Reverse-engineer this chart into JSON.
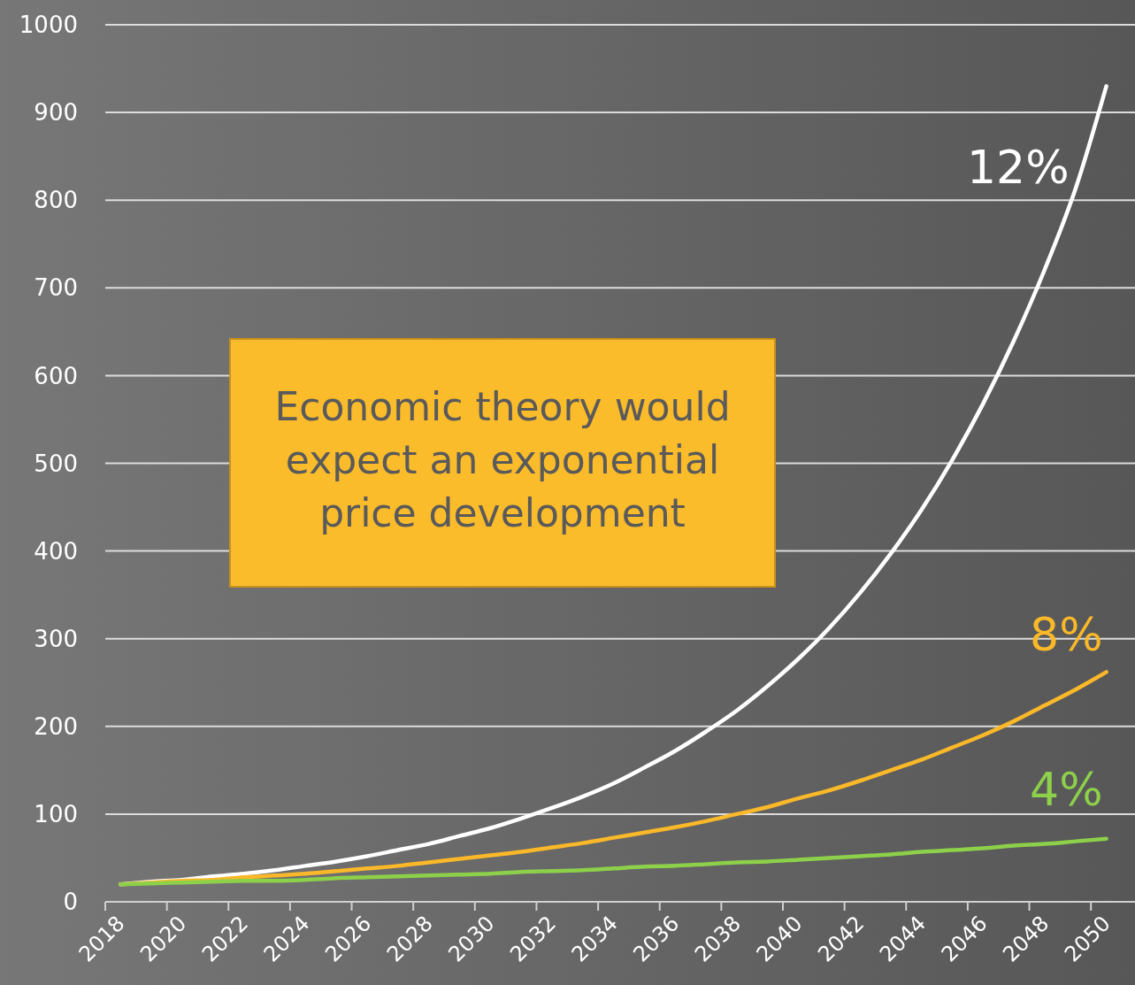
{
  "chart_data": {
    "type": "line",
    "categories": [
      "2018",
      null,
      "2020",
      null,
      "2022",
      null,
      "2024",
      null,
      "2026",
      null,
      "2028",
      null,
      "2030",
      null,
      "2032",
      null,
      "2034",
      null,
      "2036",
      null,
      "2038",
      null,
      "2040",
      null,
      "2042",
      null,
      "2044",
      null,
      "2046",
      null,
      "2048",
      null,
      "2050"
    ],
    "series": [
      {
        "name": "12%",
        "color": "#ffffff",
        "values": [
          20,
          23,
          25,
          29,
          32,
          36,
          41,
          46,
          52,
          59,
          66,
          75,
          84,
          95,
          107,
          120,
          135,
          153,
          172,
          194,
          218,
          246,
          277,
          312,
          352,
          397,
          447,
          504,
          568,
          640,
          721,
          813,
          930
        ]
      },
      {
        "name": "8%",
        "color": "#fbb829",
        "values": [
          20,
          22,
          24,
          25,
          28,
          30,
          32,
          35,
          38,
          41,
          45,
          49,
          53,
          57,
          62,
          67,
          73,
          79,
          85,
          92,
          100,
          108,
          118,
          127,
          138,
          150,
          162,
          176,
          190,
          206,
          224,
          242,
          262
        ]
      },
      {
        "name": "4%",
        "color": "#8dd04a",
        "values": [
          20,
          21,
          22,
          23,
          24,
          24,
          25,
          27,
          28,
          29,
          30,
          31,
          32,
          34,
          35,
          36,
          38,
          40,
          41,
          43,
          45,
          46,
          48,
          50,
          52,
          54,
          57,
          59,
          61,
          64,
          66,
          69,
          72
        ]
      }
    ],
    "ylim": [
      0,
      1000
    ],
    "yticks": [
      0,
      100,
      200,
      300,
      400,
      500,
      600,
      700,
      800,
      900,
      1000
    ],
    "grid": "y",
    "legend": false,
    "marker": "none",
    "line_style": "solid",
    "annotations": [
      "Economic theory would expect an exponential price development"
    ]
  }
}
